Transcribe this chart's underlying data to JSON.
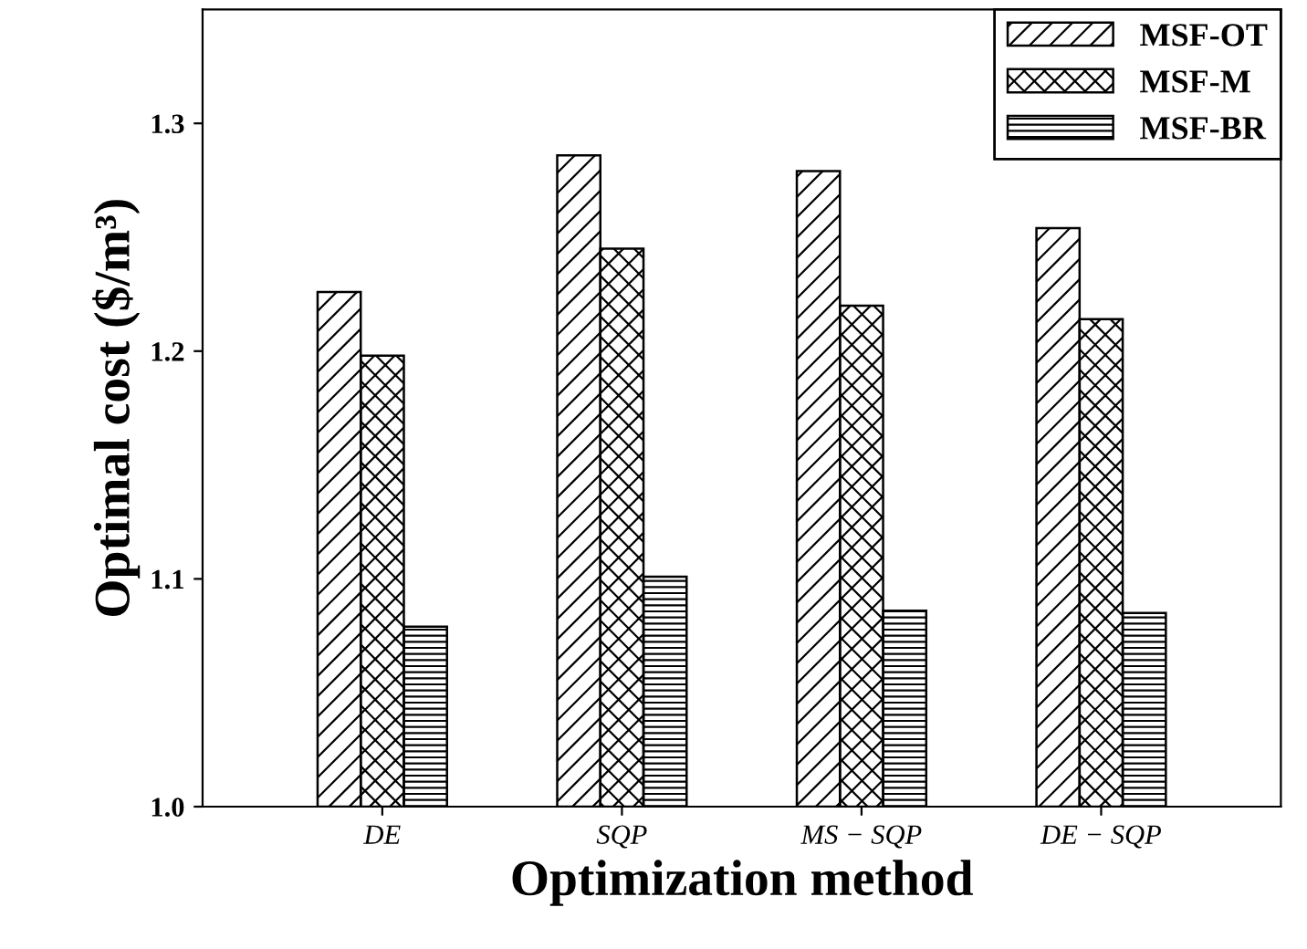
{
  "chart_data": {
    "type": "bar",
    "xlabel": "Optimization method",
    "ylabel": "Optimal cost ($/m³)",
    "categories": [
      "DE",
      "SQP",
      "MS − SQP",
      "DE − SQP"
    ],
    "series": [
      {
        "name": "MSF-OT",
        "color": "#000000",
        "values": [
          1.226,
          1.286,
          1.279,
          1.254
        ]
      },
      {
        "name": "MSF-M",
        "color": "#000000",
        "values": [
          1.198,
          1.245,
          1.22,
          1.214
        ]
      },
      {
        "name": "MSF-BR",
        "color": "#000000",
        "values": [
          1.079,
          1.101,
          1.086,
          1.085
        ]
      }
    ],
    "ylim": [
      1.0,
      1.35
    ],
    "yticks": [
      {
        "value": 1.0,
        "label": "1.0"
      },
      1.1,
      1.2,
      1.3
    ],
    "legend": "top right",
    "grid": false
  }
}
